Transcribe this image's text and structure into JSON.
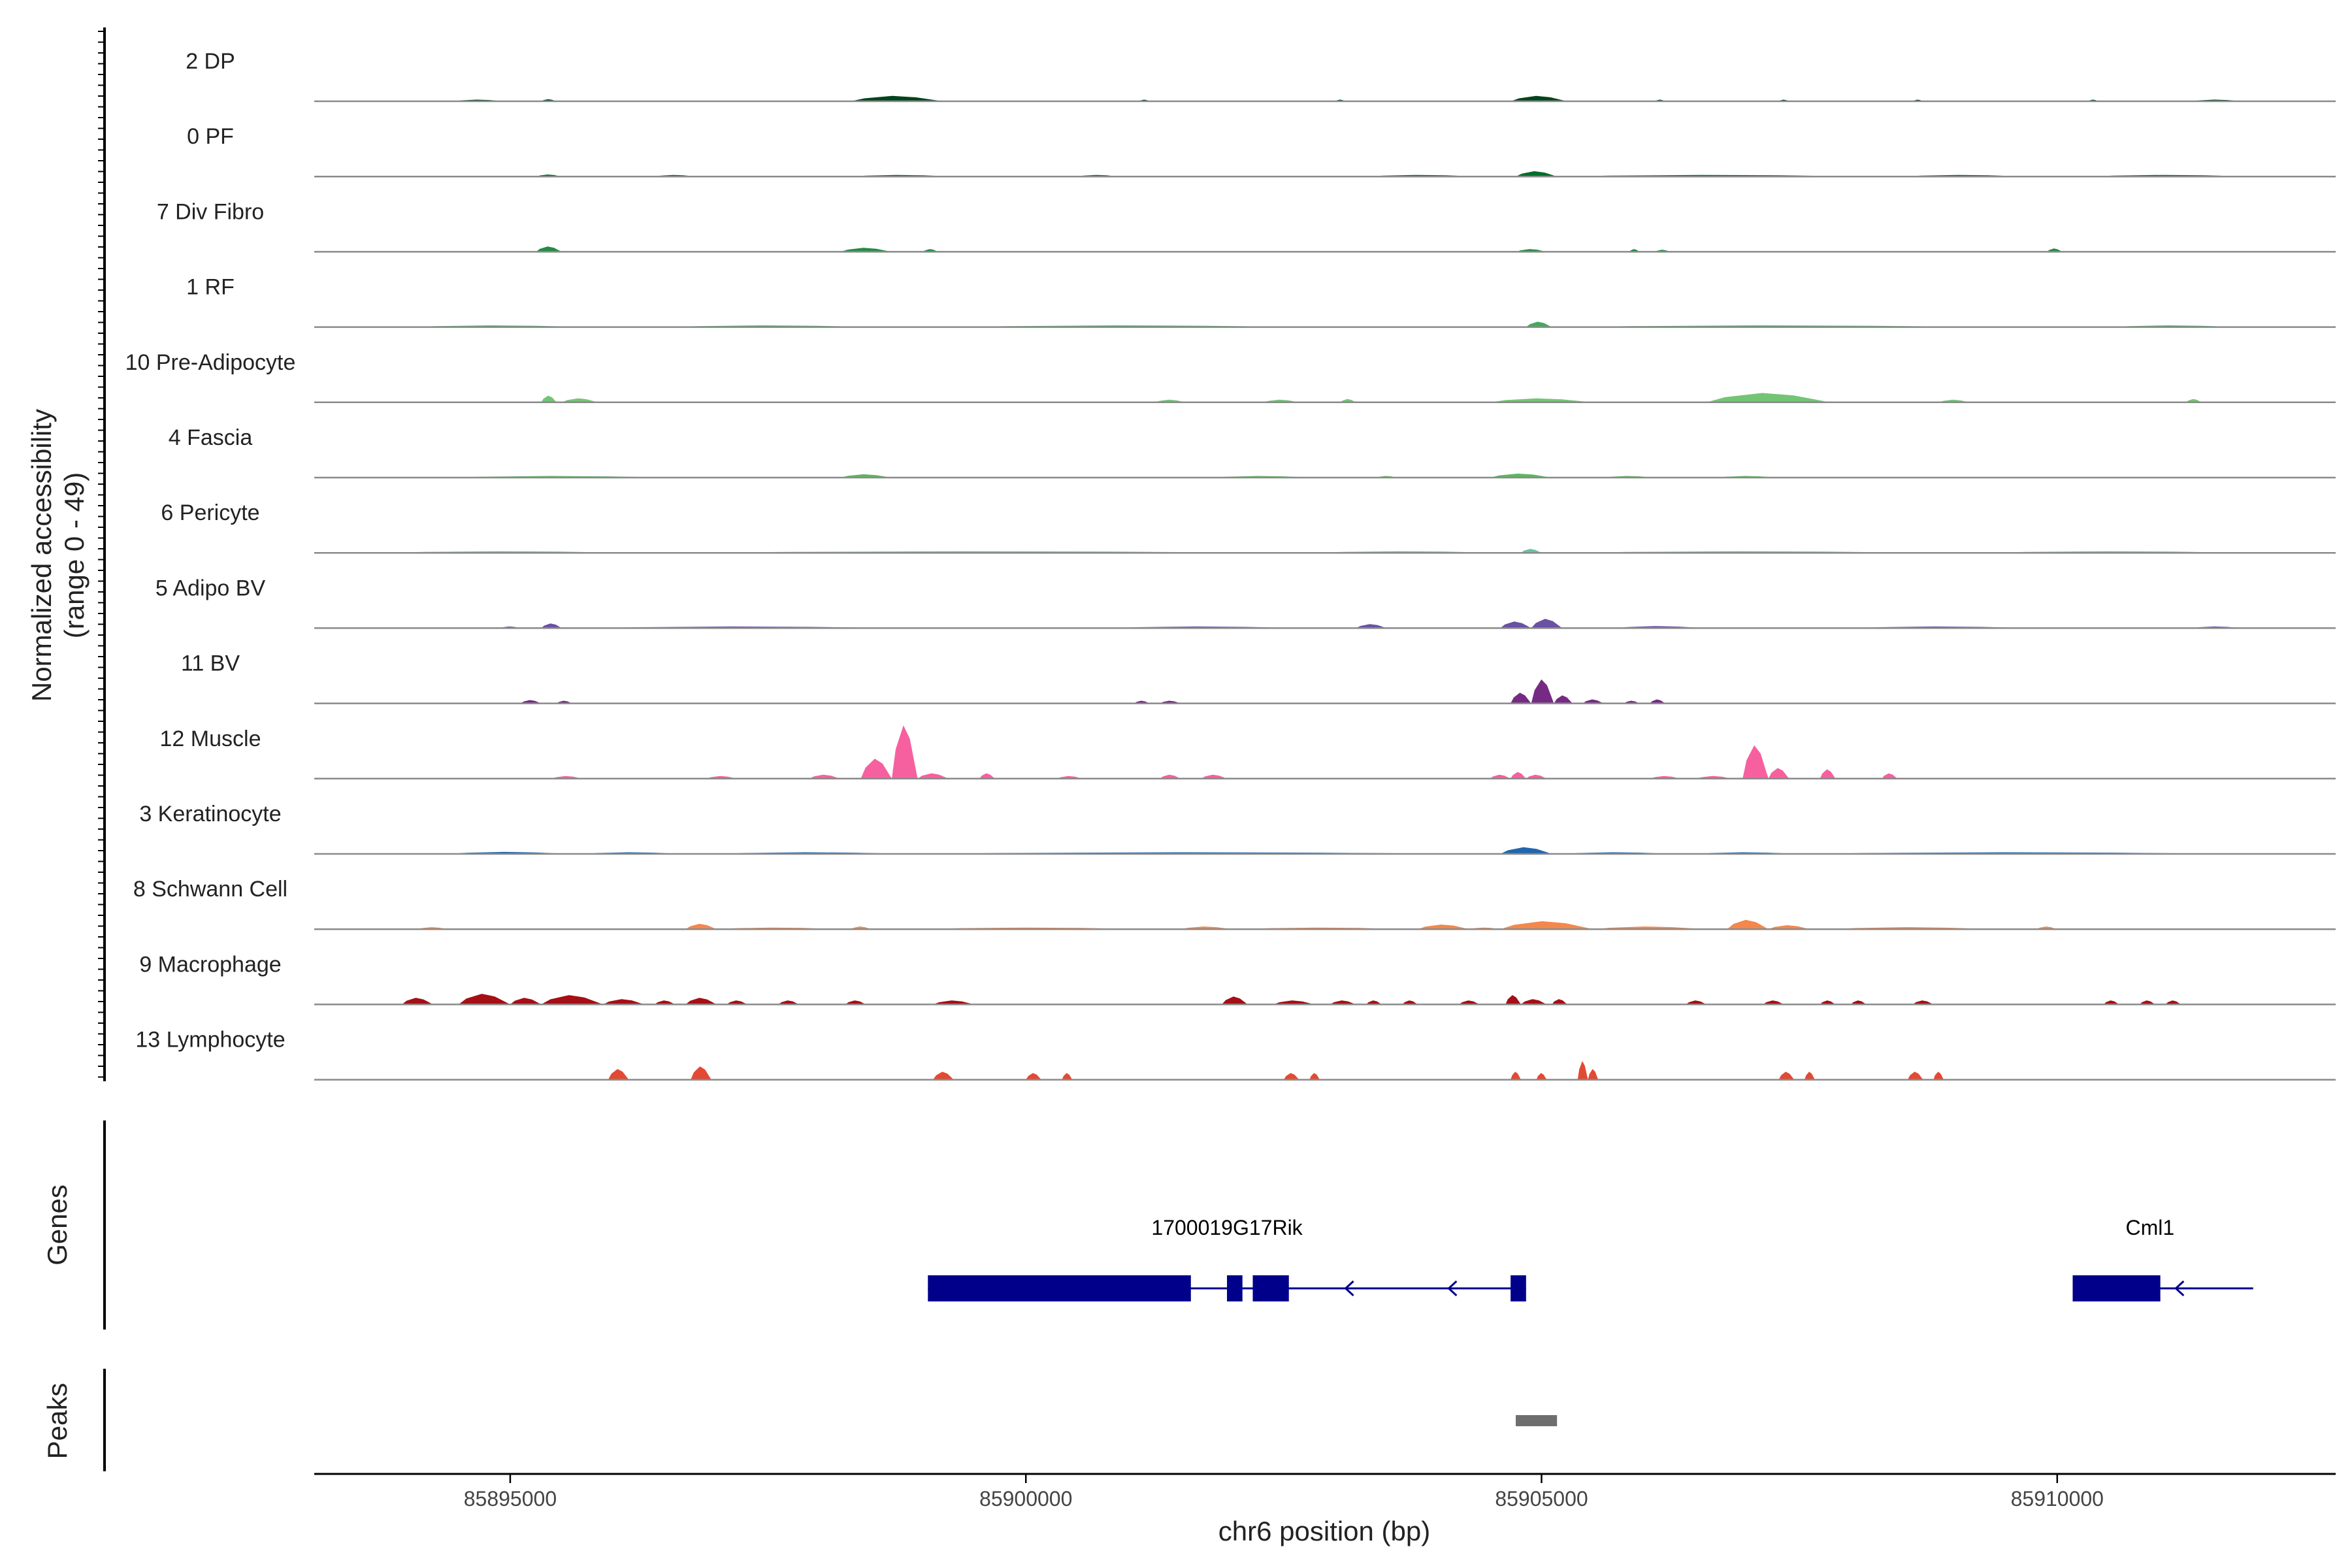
{
  "chart_data": {
    "type": "area",
    "ylabel_line1": "Normalized accessibility",
    "ylabel_line2": "(range 0 - 49)",
    "ylim": [
      0,
      49
    ],
    "genes_label": "Genes",
    "peaks_label": "Peaks",
    "xlabel": "chr6 position (bp)",
    "xlim": [
      85893100,
      85912700
    ],
    "x_ticks": [
      85895000,
      85900000,
      85905000,
      85910000
    ],
    "tracks": [
      {
        "name": "2 DP",
        "color": "#00441b",
        "peaks": [
          [
            85894450,
            85894950,
            1
          ],
          [
            85895300,
            85895450,
            1.5
          ],
          [
            85898300,
            85899200,
            4
          ],
          [
            85901100,
            85901200,
            1
          ],
          [
            85903000,
            85903100,
            1
          ],
          [
            85904700,
            85905250,
            4
          ],
          [
            85906100,
            85906200,
            1
          ],
          [
            85907300,
            85907400,
            1
          ],
          [
            85908600,
            85908700,
            1
          ],
          [
            85910300,
            85910400,
            1
          ],
          [
            85911300,
            85911800,
            1
          ]
        ]
      },
      {
        "name": "0 PF",
        "color": "#006d2c",
        "peaks": [
          [
            85895250,
            85895500,
            1.5
          ],
          [
            85896400,
            85896800,
            1
          ],
          [
            85898300,
            85899300,
            1
          ],
          [
            85900500,
            85900900,
            1
          ],
          [
            85903300,
            85904400,
            1
          ],
          [
            85904750,
            85905150,
            4
          ],
          [
            85905200,
            85908200,
            1
          ],
          [
            85908500,
            85909700,
            1
          ],
          [
            85910300,
            85911900,
            1
          ]
        ]
      },
      {
        "name": "7 Div Fibro",
        "color": "#238b45",
        "peaks": [
          [
            85895250,
            85895500,
            4
          ],
          [
            85898200,
            85898700,
            3
          ],
          [
            85899000,
            85899150,
            2
          ],
          [
            85904750,
            85905050,
            2
          ],
          [
            85905850,
            85905950,
            2
          ],
          [
            85906100,
            85906250,
            1.5
          ],
          [
            85909900,
            85910050,
            2.5
          ]
        ]
      },
      {
        "name": "1 RF",
        "color": "#41ab5d",
        "peaks": [
          [
            85894000,
            85895800,
            1
          ],
          [
            85896500,
            85898600,
            1
          ],
          [
            85899300,
            85902800,
            1
          ],
          [
            85904850,
            85905100,
            4
          ],
          [
            85905200,
            85909500,
            1
          ],
          [
            85910500,
            85911800,
            1
          ]
        ]
      },
      {
        "name": "10 Pre-Adipocyte",
        "color": "#74c476",
        "peaks": [
          [
            85895300,
            85895450,
            5
          ],
          [
            85895500,
            85895850,
            3
          ],
          [
            85901250,
            85901550,
            2
          ],
          [
            85902300,
            85902650,
            2
          ],
          [
            85903050,
            85903200,
            2.5
          ],
          [
            85904500,
            85905500,
            3
          ],
          [
            85906600,
            85907800,
            7
          ],
          [
            85908850,
            85909150,
            2
          ],
          [
            85911250,
            85911400,
            2.5
          ]
        ]
      },
      {
        "name": "4 Fascia",
        "color": "#5cb860",
        "peaks": [
          [
            85894400,
            85896600,
            0.8
          ],
          [
            85898200,
            85898700,
            2.5
          ],
          [
            85901800,
            85902800,
            1
          ],
          [
            85903400,
            85903600,
            1
          ],
          [
            85904500,
            85905100,
            3
          ],
          [
            85905600,
            85906100,
            1
          ],
          [
            85906700,
            85907300,
            1
          ]
        ]
      },
      {
        "name": "6 Pericyte",
        "color": "#66c2a4",
        "peaks": [
          [
            85893800,
            85896200,
            1
          ],
          [
            85896800,
            85902600,
            0.8
          ],
          [
            85902800,
            85904600,
            0.8
          ],
          [
            85904800,
            85905000,
            3
          ],
          [
            85905300,
            85908800,
            0.8
          ],
          [
            85909300,
            85911900,
            0.8
          ]
        ]
      },
      {
        "name": "5 Adipo BV",
        "color": "#6a51a3",
        "peaks": [
          [
            85894900,
            85895100,
            1
          ],
          [
            85895300,
            85895500,
            3.5
          ],
          [
            85895800,
            85898800,
            0.8
          ],
          [
            85900800,
            85902700,
            0.8
          ],
          [
            85903200,
            85903500,
            3
          ],
          [
            85904600,
            85904900,
            5
          ],
          [
            85904900,
            85905200,
            7
          ],
          [
            85905700,
            85906600,
            1.5
          ],
          [
            85908000,
            85909800,
            0.8
          ],
          [
            85911300,
            85911800,
            1
          ]
        ]
      },
      {
        "name": "11 BV",
        "color": "#762a83",
        "peaks": [
          [
            85895100,
            85895300,
            2.5
          ],
          [
            85895450,
            85895600,
            2
          ],
          [
            85901050,
            85901200,
            2
          ],
          [
            85901300,
            85901500,
            2
          ],
          [
            85904700,
            85904900,
            8
          ],
          [
            85904900,
            85905120,
            18
          ],
          [
            85905120,
            85905300,
            6
          ],
          [
            85905400,
            85905600,
            3
          ],
          [
            85905800,
            85905950,
            2
          ],
          [
            85906050,
            85906200,
            3
          ]
        ]
      },
      {
        "name": "12 Muscle",
        "color": "#f7609f",
        "peaks": [
          [
            85895400,
            85895700,
            2
          ],
          [
            85896900,
            85897200,
            2
          ],
          [
            85897900,
            85898200,
            3
          ],
          [
            85898400,
            85898700,
            15
          ],
          [
            85898700,
            85898950,
            40
          ],
          [
            85898950,
            85899250,
            4
          ],
          [
            85899550,
            85899700,
            4
          ],
          [
            85900300,
            85900550,
            2
          ],
          [
            85901300,
            85901500,
            3
          ],
          [
            85901700,
            85901950,
            3
          ],
          [
            85904500,
            85904700,
            3
          ],
          [
            85904700,
            85904850,
            5
          ],
          [
            85904850,
            85905050,
            3
          ],
          [
            85906050,
            85906350,
            2
          ],
          [
            85906500,
            85906850,
            2
          ],
          [
            85906950,
            85907200,
            25
          ],
          [
            85907200,
            85907400,
            8
          ],
          [
            85907700,
            85907850,
            7
          ],
          [
            85908300,
            85908450,
            4
          ]
        ]
      },
      {
        "name": "3 Keratinocyte",
        "color": "#2166ac",
        "peaks": [
          [
            85894400,
            85895600,
            1.5
          ],
          [
            85895700,
            85896700,
            1
          ],
          [
            85897000,
            85898900,
            1
          ],
          [
            85899000,
            85904500,
            0.8
          ],
          [
            85904600,
            85905100,
            5
          ],
          [
            85905200,
            85906300,
            1
          ],
          [
            85906500,
            85907500,
            1
          ],
          [
            85907500,
            85911900,
            0.8
          ]
        ]
      },
      {
        "name": "8 Schwann Cell",
        "color": "#f4874b",
        "peaks": [
          [
            85894100,
            85894400,
            1.5
          ],
          [
            85896700,
            85897000,
            4
          ],
          [
            85897000,
            85898200,
            1
          ],
          [
            85898300,
            85898500,
            2
          ],
          [
            85899000,
            85901200,
            1
          ],
          [
            85901500,
            85902000,
            2
          ],
          [
            85902100,
            85903700,
            1
          ],
          [
            85903800,
            85904300,
            3.5
          ],
          [
            85904300,
            85904600,
            1
          ],
          [
            85904600,
            85905500,
            6
          ],
          [
            85905500,
            85906600,
            2
          ],
          [
            85906800,
            85907200,
            7
          ],
          [
            85907200,
            85907600,
            3
          ],
          [
            85907800,
            85909400,
            1.5
          ],
          [
            85909800,
            85910000,
            2
          ]
        ]
      },
      {
        "name": "9 Macrophage",
        "color": "#a50f15",
        "peaks": [
          [
            85893950,
            85894250,
            5
          ],
          [
            85894500,
            85895000,
            8
          ],
          [
            85895000,
            85895300,
            5
          ],
          [
            85895300,
            85895900,
            7
          ],
          [
            85895900,
            85896300,
            4
          ],
          [
            85896400,
            85896600,
            3
          ],
          [
            85896700,
            85897000,
            5
          ],
          [
            85897100,
            85897300,
            3
          ],
          [
            85897600,
            85897800,
            3
          ],
          [
            85898250,
            85898450,
            3
          ],
          [
            85899100,
            85899500,
            3
          ],
          [
            85901900,
            85902150,
            6
          ],
          [
            85902400,
            85902800,
            3
          ],
          [
            85902950,
            85903200,
            3
          ],
          [
            85903300,
            85903450,
            3
          ],
          [
            85903650,
            85903800,
            3
          ],
          [
            85904200,
            85904400,
            3
          ],
          [
            85904650,
            85904800,
            7
          ],
          [
            85904800,
            85905050,
            4
          ],
          [
            85905100,
            85905250,
            4
          ],
          [
            85906400,
            85906600,
            3
          ],
          [
            85907150,
            85907350,
            3
          ],
          [
            85907700,
            85907850,
            3
          ],
          [
            85908000,
            85908150,
            3
          ],
          [
            85908600,
            85908800,
            3
          ],
          [
            85910450,
            85910600,
            3
          ],
          [
            85910800,
            85910950,
            3
          ],
          [
            85911050,
            85911200,
            3
          ]
        ]
      },
      {
        "name": "13 Lymphocyte",
        "color": "#e34a33",
        "peaks": [
          [
            85895950,
            85896150,
            8
          ],
          [
            85896750,
            85896950,
            10
          ],
          [
            85899100,
            85899300,
            6
          ],
          [
            85900000,
            85900150,
            5
          ],
          [
            85900350,
            85900450,
            5
          ],
          [
            85902500,
            85902650,
            5
          ],
          [
            85902750,
            85902850,
            5
          ],
          [
            85904700,
            85904800,
            6
          ],
          [
            85904950,
            85905050,
            5
          ],
          [
            85905350,
            85905450,
            14
          ],
          [
            85905450,
            85905550,
            8
          ],
          [
            85907300,
            85907450,
            6
          ],
          [
            85907550,
            85907650,
            6
          ],
          [
            85908550,
            85908700,
            6
          ],
          [
            85908800,
            85908900,
            6
          ]
        ]
      }
    ],
    "genes": [
      {
        "name": "1700019G17Rik",
        "label_x": 85901950,
        "line": [
          85904850,
          85899050
        ],
        "arrow_positions": [
          85903100,
          85904100
        ],
        "exons": [
          [
            85899050,
            85901600
          ],
          [
            85901950,
            85902100
          ],
          [
            85902200,
            85902550
          ],
          [
            85904700,
            85904850
          ]
        ]
      },
      {
        "name": "Cml1",
        "label_x": 85910900,
        "line": [
          85911900,
          85910150
        ],
        "arrow_positions": [
          85911150
        ],
        "exons": [
          [
            85910150,
            85911000
          ]
        ]
      }
    ],
    "peaks": [
      [
        85904750,
        85905150
      ]
    ]
  }
}
